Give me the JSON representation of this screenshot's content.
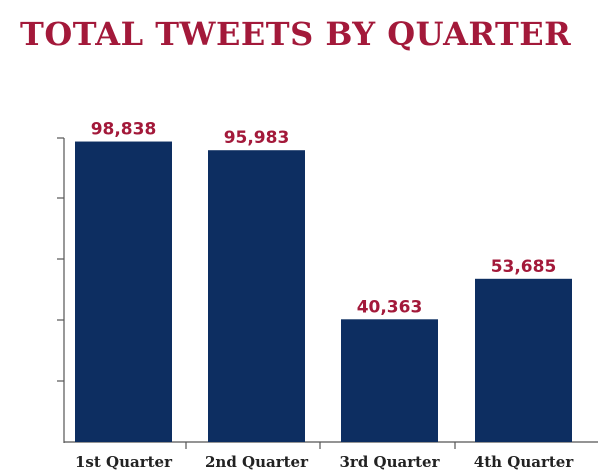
{
  "chart_data": {
    "type": "bar",
    "title": "TOTAL TWEETS BY QUARTER",
    "categories": [
      "1st Quarter",
      "2nd Quarter",
      "3rd Quarter",
      "4th Quarter"
    ],
    "values": [
      98838,
      95983,
      40363,
      53685
    ],
    "value_labels": [
      "98,838",
      "95,983",
      "40,363",
      "53,685"
    ],
    "ylim": [
      0,
      100000
    ],
    "grid": false,
    "legend": "none"
  },
  "colors": {
    "title": "#a3193a",
    "value_labels": "#a3193a",
    "bars": "#0d2e61",
    "axis": "#555555",
    "tick_labels": "#222222"
  }
}
